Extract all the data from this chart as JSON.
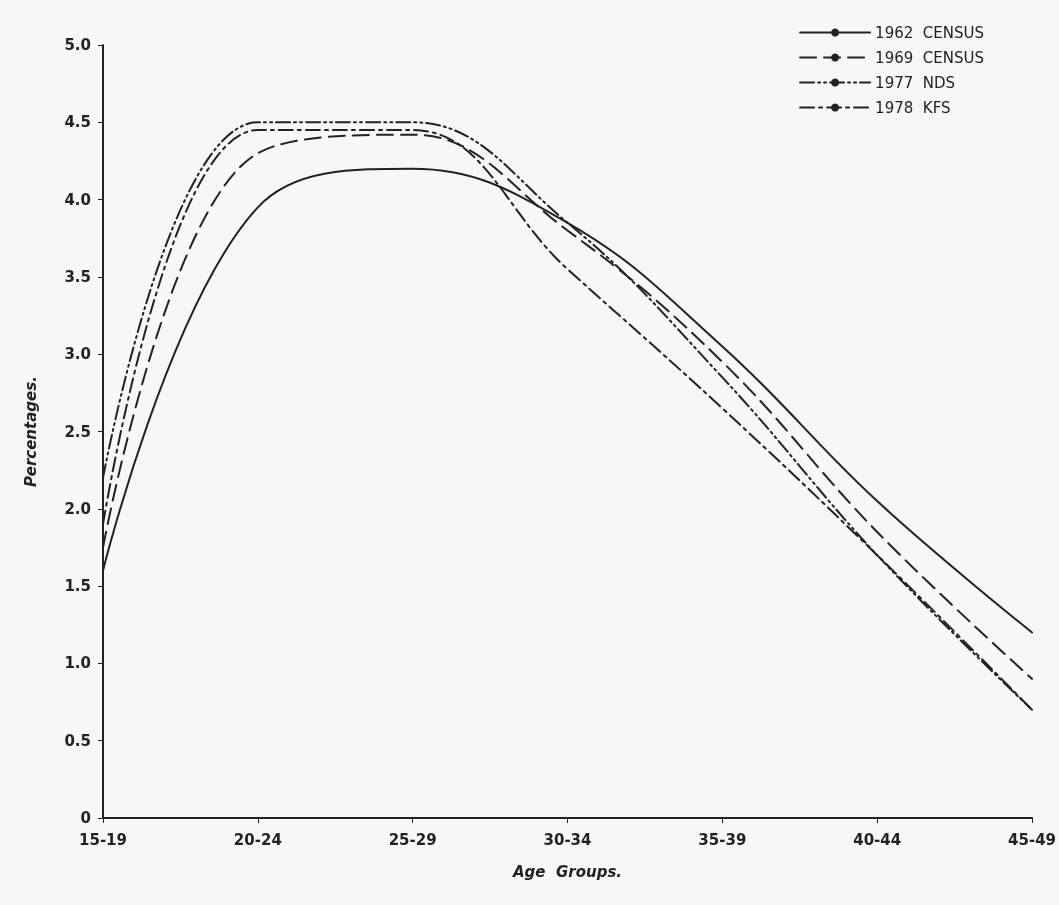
{
  "chart_data": {
    "type": "line",
    "xlabel": "Age  Groups.",
    "ylabel": "Percentages.",
    "categories": [
      "15-19",
      "20-24",
      "25-29",
      "30-34",
      "35-39",
      "40-44",
      "45-49"
    ],
    "series": [
      {
        "name": "1962  CENSUS",
        "color": "#222222",
        "line_style": "solid",
        "values": [
          1.6,
          3.95,
          4.2,
          3.85,
          3.05,
          2.05,
          1.2
        ]
      },
      {
        "name": "1969  CENSUS",
        "color": "#222222",
        "line_style": "dashed",
        "values": [
          1.75,
          4.3,
          4.42,
          3.8,
          2.95,
          1.85,
          0.9
        ]
      },
      {
        "name": "1977  NDS",
        "color": "#222222",
        "line_style": "dotted",
        "values": [
          2.2,
          4.5,
          4.5,
          3.85,
          2.85,
          1.7,
          0.7
        ]
      },
      {
        "name": "1978  KFS",
        "color": "#222222",
        "line_style": "dashdot",
        "values": [
          1.9,
          4.45,
          4.45,
          3.55,
          2.65,
          1.7,
          0.7
        ]
      }
    ],
    "ylim": [
      0,
      5
    ],
    "yticks": [
      0,
      0.5,
      {
        "value": 1,
        "label": "1.0"
      },
      1.5,
      {
        "value": 2,
        "label": "2.0"
      },
      2.5,
      {
        "value": 3,
        "label": "3.0"
      },
      3.5,
      {
        "value": 4,
        "label": "4.0"
      },
      4.5,
      {
        "value": 5,
        "label": "5.0"
      }
    ],
    "grid": false,
    "legend": "top right",
    "marker": "none"
  }
}
